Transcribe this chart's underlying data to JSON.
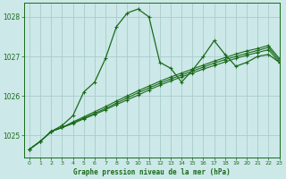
{
  "title": "Graphe pression niveau de la mer (hPa)",
  "background_color": "#cce8e8",
  "grid_color": "#aacccc",
  "line_color": "#1a6b1a",
  "xlim": [
    -0.5,
    23
  ],
  "ylim": [
    1024.45,
    1028.35
  ],
  "yticks": [
    1025,
    1026,
    1027,
    1028
  ],
  "xticks": [
    0,
    1,
    2,
    3,
    4,
    5,
    6,
    7,
    8,
    9,
    10,
    11,
    12,
    13,
    14,
    15,
    16,
    17,
    18,
    19,
    20,
    21,
    22,
    23
  ],
  "series_main": [
    1024.65,
    1024.85,
    1025.1,
    1025.25,
    1025.5,
    1026.1,
    1026.35,
    1026.95,
    1027.75,
    1028.1,
    1028.2,
    1028.0,
    1026.85,
    1026.7,
    1026.35,
    1026.65,
    1027.0,
    1027.4,
    1027.05,
    1026.75,
    1026.85,
    1027.0,
    1027.05,
    1026.85
  ],
  "series_line1": [
    1024.65,
    1024.85,
    1025.1,
    1025.2,
    1025.3,
    1025.42,
    1025.53,
    1025.65,
    1025.78,
    1025.9,
    1026.02,
    1026.15,
    1026.27,
    1026.38,
    1026.48,
    1026.58,
    1026.68,
    1026.77,
    1026.86,
    1026.95,
    1027.03,
    1027.1,
    1027.17,
    1026.85
  ],
  "series_line2": [
    1024.65,
    1024.85,
    1025.1,
    1025.2,
    1025.32,
    1025.44,
    1025.56,
    1025.68,
    1025.82,
    1025.95,
    1026.08,
    1026.2,
    1026.32,
    1026.43,
    1026.53,
    1026.63,
    1026.73,
    1026.83,
    1026.92,
    1027.0,
    1027.08,
    1027.15,
    1027.23,
    1026.9
  ],
  "series_line3": [
    1024.65,
    1024.85,
    1025.1,
    1025.2,
    1025.34,
    1025.47,
    1025.6,
    1025.73,
    1025.87,
    1026.0,
    1026.13,
    1026.25,
    1026.37,
    1026.48,
    1026.58,
    1026.68,
    1026.78,
    1026.88,
    1026.97,
    1027.06,
    1027.14,
    1027.2,
    1027.28,
    1026.95
  ]
}
